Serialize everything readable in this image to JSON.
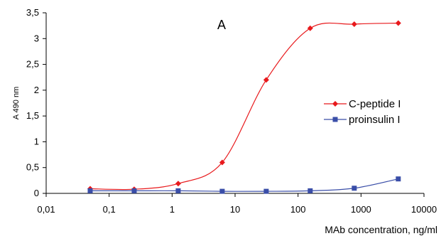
{
  "chart_data": {
    "type": "line",
    "title": "",
    "panel_label": "A",
    "xlabel": "MAb concentration, ng/ml",
    "ylabel": "A 490 nm",
    "x_scale": "log",
    "xlim": [
      0.01,
      10000
    ],
    "ylim": [
      0,
      3.5
    ],
    "x_ticks": [
      0.01,
      0.1,
      1,
      10,
      100,
      1000,
      10000
    ],
    "x_tick_labels": [
      "0,01",
      "0,1",
      "1",
      "10",
      "100",
      "1000",
      "10000"
    ],
    "y_ticks": [
      0,
      0.5,
      1,
      1.5,
      2,
      2.5,
      3,
      3.5
    ],
    "y_tick_labels": [
      "0",
      "0,5",
      "1",
      "1,5",
      "2",
      "2,5",
      "3",
      "3,5"
    ],
    "grid": false,
    "legend_position": "right",
    "x": [
      0.05,
      0.25,
      1.25,
      6.25,
      31.25,
      156,
      781,
      3906
    ],
    "series": [
      {
        "name": "C-peptide I",
        "color": "#e8191c",
        "marker": "diamond",
        "values": [
          0.09,
          0.08,
          0.19,
          0.6,
          2.2,
          3.2,
          3.28,
          3.3
        ]
      },
      {
        "name": "proinsulin I",
        "color": "#3a4ea8",
        "marker": "square",
        "values": [
          0.05,
          0.05,
          0.05,
          0.04,
          0.04,
          0.05,
          0.1,
          0.28
        ]
      }
    ]
  }
}
